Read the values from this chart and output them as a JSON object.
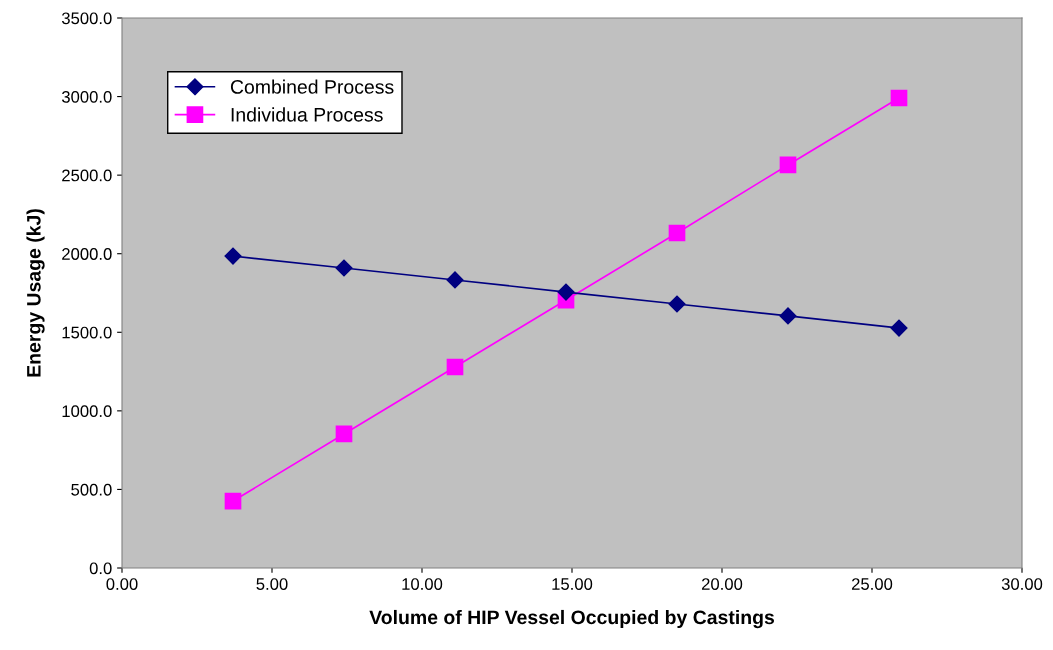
{
  "chart_data": {
    "type": "line",
    "xlabel": "Volume of HIP Vessel Occupied by Castings",
    "ylabel": "Energy Usage (kJ)",
    "x": [
      3.7,
      7.4,
      11.1,
      14.8,
      18.5,
      22.2,
      25.9
    ],
    "series": [
      {
        "name": "Combined Process",
        "color": "#000080",
        "marker": "diamond",
        "values": [
          1985,
          1909,
          1833,
          1756,
          1680,
          1604,
          1527
        ]
      },
      {
        "name": "Individua Process",
        "color": "#ff00ff",
        "marker": "square",
        "values": [
          426,
          853,
          1279,
          1705,
          2132,
          2565,
          2991
        ]
      }
    ],
    "xlim": [
      0,
      30
    ],
    "ylim": [
      0,
      3500
    ],
    "xticks": [
      {
        "value": 0,
        "label": "0.00"
      },
      {
        "value": 5,
        "label": "5.00"
      },
      {
        "value": 10,
        "label": "10.00"
      },
      {
        "value": 15,
        "label": "15.00"
      },
      {
        "value": 20,
        "label": "20.00"
      },
      {
        "value": 25,
        "label": "25.00"
      },
      {
        "value": 30,
        "label": "30.00"
      }
    ],
    "yticks": [
      {
        "value": 0,
        "label": "0.0"
      },
      {
        "value": 500,
        "label": "500.0"
      },
      {
        "value": 1000,
        "label": "1000.0"
      },
      {
        "value": 1500,
        "label": "1500.0"
      },
      {
        "value": 2000,
        "label": "2000.0"
      },
      {
        "value": 2500,
        "label": "2500.0"
      },
      {
        "value": 3000,
        "label": "3000.0"
      },
      {
        "value": 3500,
        "label": "3500.0"
      }
    ],
    "grid": false,
    "legend": "top left"
  }
}
